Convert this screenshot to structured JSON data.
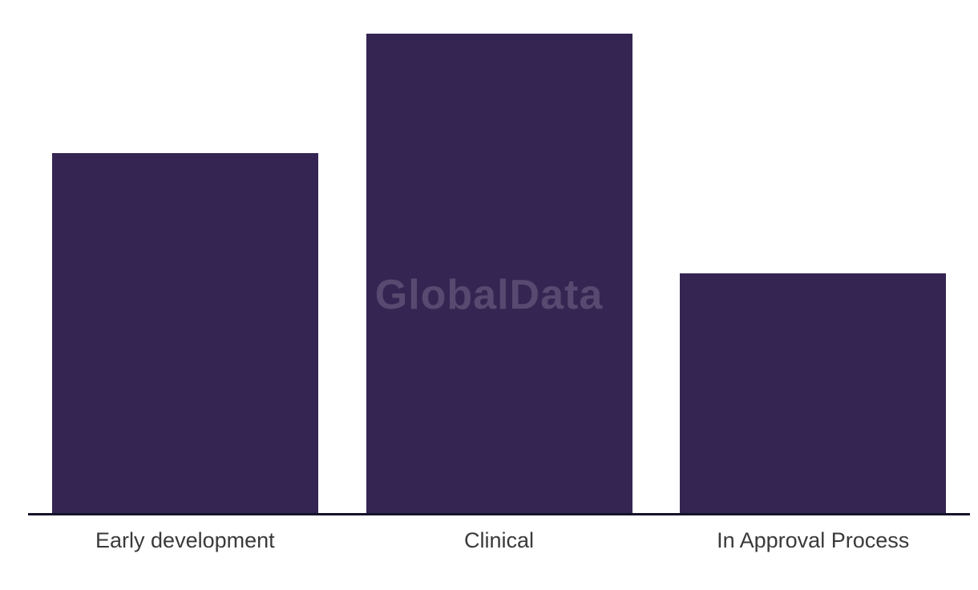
{
  "chart_data": {
    "type": "bar",
    "title": "",
    "categories": [
      "Early development",
      "Clinical",
      "In Approval Process"
    ],
    "values": [
      3,
      4,
      2
    ],
    "xlabel": "",
    "ylabel": "",
    "ylim": [
      0,
      4.28
    ],
    "grid": false,
    "legend": "none",
    "y_axis_visible": false,
    "bar_color": "#352552",
    "axis_line_color": "#15142a",
    "label_color": "#3a3a3a",
    "background_color": "#ffffff"
  },
  "watermark": {
    "text": "GlobalData",
    "color": "rgba(255,255,255,0.17)"
  }
}
